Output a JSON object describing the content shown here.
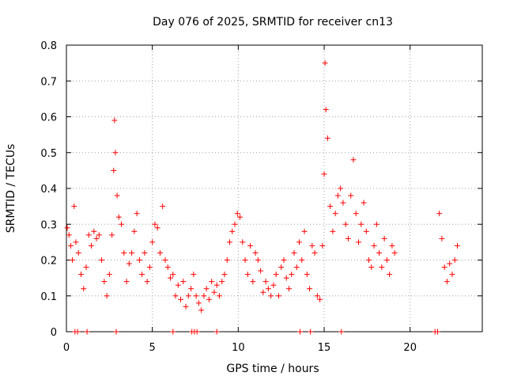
{
  "chart_data": {
    "type": "scatter",
    "title": "Day 076 of 2025, SRMTID for receiver cn13",
    "xlabel": "GPS time / hours",
    "ylabel": "SRMTID / TECUs",
    "xlim": [
      0,
      24.2
    ],
    "ylim": [
      0,
      0.8
    ],
    "x_ticks": [
      0,
      5,
      10,
      15,
      20
    ],
    "x_tick_labels": [
      "0",
      "5",
      "10",
      "15",
      "20"
    ],
    "y_ticks": [
      0,
      0.1,
      0.2,
      0.3,
      0.4,
      0.5,
      0.6,
      0.7,
      0.8
    ],
    "y_tick_labels": [
      "0",
      "0.1",
      "0.2",
      "0.3",
      "0.4",
      "0.5",
      "0.6",
      "0.7",
      "0.8"
    ],
    "grid": true,
    "legend": "none",
    "marker": "+",
    "color": "#ff0000",
    "series": [
      {
        "name": "SRMTID",
        "x": [
          0.05,
          0.15,
          0.25,
          0.35,
          0.45,
          0.55,
          0.7,
          0.85,
          1.0,
          1.15,
          1.3,
          1.45,
          1.6,
          1.75,
          1.9,
          2.05,
          2.2,
          2.35,
          2.5,
          2.65,
          2.75,
          2.8,
          2.85,
          2.95,
          3.05,
          3.2,
          3.35,
          3.5,
          3.65,
          3.8,
          3.95,
          4.1,
          4.25,
          4.4,
          4.55,
          4.7,
          4.85,
          5.0,
          5.15,
          5.3,
          5.45,
          5.6,
          5.75,
          5.9,
          6.05,
          6.2,
          6.35,
          6.5,
          6.65,
          6.8,
          6.95,
          7.1,
          7.25,
          7.4,
          7.55,
          7.7,
          7.85,
          8.0,
          8.15,
          8.3,
          8.45,
          8.6,
          8.75,
          8.9,
          9.05,
          9.2,
          9.35,
          9.5,
          9.65,
          9.8,
          9.95,
          10.1,
          10.25,
          10.4,
          10.55,
          10.7,
          10.85,
          11.0,
          11.15,
          11.3,
          11.45,
          11.6,
          11.75,
          11.9,
          12.05,
          12.2,
          12.35,
          12.5,
          12.65,
          12.8,
          12.95,
          13.1,
          13.25,
          13.4,
          13.55,
          13.7,
          13.85,
          14.0,
          14.15,
          14.3,
          14.45,
          14.6,
          14.75,
          14.9,
          15.0,
          15.05,
          15.1,
          15.2,
          15.35,
          15.5,
          15.65,
          15.8,
          15.95,
          16.1,
          16.25,
          16.4,
          16.55,
          16.7,
          16.85,
          17.0,
          17.15,
          17.3,
          17.45,
          17.6,
          17.75,
          17.9,
          18.05,
          18.2,
          18.35,
          18.5,
          18.65,
          18.8,
          18.95,
          19.1,
          21.7,
          21.85,
          22.0,
          22.15,
          22.3,
          22.45,
          22.6,
          22.75,
          0.5,
          0.65,
          1.2,
          2.9,
          6.2,
          7.3,
          7.45,
          7.6,
          8.75,
          13.6,
          14.2,
          16.0,
          21.45,
          21.6
        ],
        "y": [
          0.29,
          0.27,
          0.24,
          0.2,
          0.35,
          0.25,
          0.22,
          0.16,
          0.12,
          0.18,
          0.27,
          0.24,
          0.28,
          0.26,
          0.27,
          0.2,
          0.14,
          0.1,
          0.16,
          0.27,
          0.45,
          0.59,
          0.5,
          0.38,
          0.32,
          0.3,
          0.22,
          0.14,
          0.19,
          0.22,
          0.28,
          0.33,
          0.2,
          0.16,
          0.22,
          0.14,
          0.18,
          0.25,
          0.3,
          0.29,
          0.22,
          0.35,
          0.2,
          0.18,
          0.15,
          0.16,
          0.1,
          0.13,
          0.09,
          0.14,
          0.07,
          0.1,
          0.12,
          0.16,
          0.1,
          0.08,
          0.06,
          0.1,
          0.12,
          0.09,
          0.14,
          0.11,
          0.13,
          0.1,
          0.14,
          0.16,
          0.2,
          0.25,
          0.28,
          0.3,
          0.33,
          0.32,
          0.25,
          0.2,
          0.16,
          0.24,
          0.14,
          0.22,
          0.2,
          0.17,
          0.11,
          0.14,
          0.12,
          0.1,
          0.13,
          0.16,
          0.1,
          0.18,
          0.2,
          0.15,
          0.12,
          0.16,
          0.22,
          0.18,
          0.25,
          0.2,
          0.28,
          0.16,
          0.12,
          0.24,
          0.22,
          0.1,
          0.09,
          0.24,
          0.44,
          0.75,
          0.62,
          0.54,
          0.35,
          0.28,
          0.33,
          0.38,
          0.4,
          0.36,
          0.3,
          0.26,
          0.38,
          0.48,
          0.33,
          0.25,
          0.3,
          0.36,
          0.28,
          0.2,
          0.18,
          0.24,
          0.3,
          0.22,
          0.18,
          0.26,
          0.2,
          0.16,
          0.24,
          0.22,
          0.33,
          0.26,
          0.18,
          0.14,
          0.19,
          0.16,
          0.2,
          0.24,
          0.0,
          0.0,
          0.0,
          0.0,
          0.0,
          0.0,
          0.0,
          0.0,
          0.0,
          0.0,
          0.0,
          0.0,
          0.0,
          0.0
        ]
      }
    ]
  }
}
